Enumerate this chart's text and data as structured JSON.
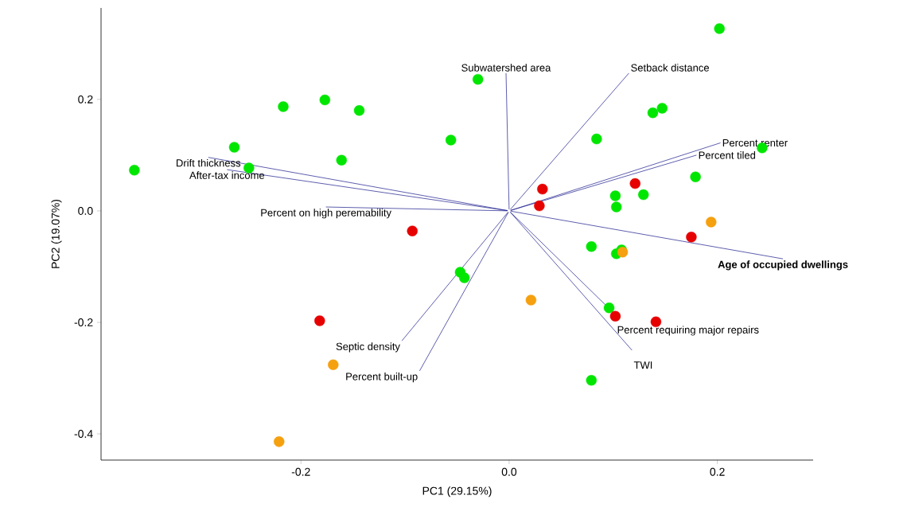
{
  "chart_data": {
    "type": "scatter",
    "xlabel": "PC1 (29.15%)",
    "ylabel": "PC2 (19.07%)",
    "xlim": [
      -0.392,
      0.292
    ],
    "ylim": [
      -0.447,
      0.364
    ],
    "xticks": [
      -0.2,
      {
        "value": 0,
        "label": "0.0"
      },
      0.2
    ],
    "yticks": [
      -0.4,
      -0.2,
      {
        "value": 0,
        "label": "0.0"
      },
      0.2
    ],
    "marker": "circle",
    "series": [
      {
        "type": "line",
        "marker": "none",
        "name": "Subwatershed area",
        "color": "#1a1a8c",
        "x": [
          0,
          -0.003
        ],
        "values": [
          0,
          0.247
        ]
      },
      {
        "type": "line",
        "marker": "none",
        "name": "Setback distance",
        "color": "#1a1a8c",
        "x": [
          0,
          0.115
        ],
        "values": [
          0,
          0.247
        ]
      },
      {
        "type": "line",
        "marker": "none",
        "name": "Percent renter",
        "color": "#1a1a8c",
        "x": [
          0,
          0.203
        ],
        "values": [
          0,
          0.122
        ]
      },
      {
        "type": "line",
        "marker": "none",
        "name": "Percent tiled",
        "color": "#1a1a8c",
        "x": [
          0,
          0.18
        ],
        "values": [
          0,
          0.1
        ]
      },
      {
        "type": "line",
        "marker": "none",
        "name": "Drift thickness",
        "color": "#1a1a8c",
        "x": [
          0,
          -0.289
        ],
        "values": [
          0,
          0.096
        ]
      },
      {
        "type": "line",
        "marker": "none",
        "name": "After-tax income",
        "color": "#1a1a8c",
        "x": [
          0,
          -0.271
        ],
        "values": [
          0,
          0.074
        ]
      },
      {
        "type": "line",
        "marker": "none",
        "name": "Percent on high peremability",
        "color": "#1a1a8c",
        "x": [
          0,
          -0.176
        ],
        "values": [
          0,
          0.007
        ]
      },
      {
        "type": "line",
        "marker": "none",
        "name": "**Age of occupied dwellings**",
        "color": "#1a1a8c",
        "x": [
          0,
          0.263
        ],
        "values": [
          0,
          -0.086
        ]
      },
      {
        "type": "line",
        "marker": "none",
        "name": "Percent requiring major repairs",
        "color": "#1a1a8c",
        "x": [
          0,
          0.102
        ],
        "values": [
          0,
          -0.186
        ]
      },
      {
        "type": "line",
        "marker": "none",
        "name": "TWI",
        "color": "#1a1a8c",
        "x": [
          0,
          0.118
        ],
        "values": [
          0,
          -0.25
        ]
      },
      {
        "type": "line",
        "marker": "none",
        "name": "Septic density",
        "color": "#1a1a8c",
        "x": [
          0,
          -0.103
        ],
        "values": [
          0,
          -0.233
        ]
      },
      {
        "type": "line",
        "marker": "none",
        "name": "Percent built-up",
        "color": "#1a1a8c",
        "x": [
          0,
          -0.086
        ],
        "values": [
          0,
          -0.287
        ]
      },
      {
        "color": "#00e600",
        "x": [
          -0.36,
          0.202,
          -0.264,
          -0.25,
          -0.217,
          -0.177,
          -0.144,
          -0.161,
          -0.056,
          -0.03,
          0.084,
          0.138,
          0.147,
          0.179,
          0.243,
          0.102,
          0.103,
          0.129,
          0.079,
          0.108,
          0.103,
          -0.047,
          -0.043,
          0.096,
          0.079
        ],
        "values": [
          0.073,
          0.327,
          0.114,
          0.077,
          0.187,
          0.199,
          0.18,
          0.091,
          0.127,
          0.236,
          0.129,
          0.176,
          0.184,
          0.061,
          0.113,
          0.027,
          0.007,
          0.029,
          -0.064,
          -0.07,
          -0.077,
          -0.11,
          -0.12,
          -0.174,
          -0.304
        ]
      },
      {
        "color": "#e60000",
        "x": [
          0.032,
          0.029,
          0.121,
          -0.093,
          0.175,
          -0.182,
          0.102,
          0.141
        ],
        "values": [
          0.039,
          0.009,
          0.049,
          -0.036,
          -0.047,
          -0.197,
          -0.189,
          -0.199
        ]
      },
      {
        "color": "#f5a00f",
        "x": [
          0.194,
          0.109,
          0.021,
          -0.169,
          -0.221
        ],
        "values": [
          -0.02,
          -0.074,
          -0.16,
          -0.276,
          -0.414
        ]
      }
    ]
  }
}
